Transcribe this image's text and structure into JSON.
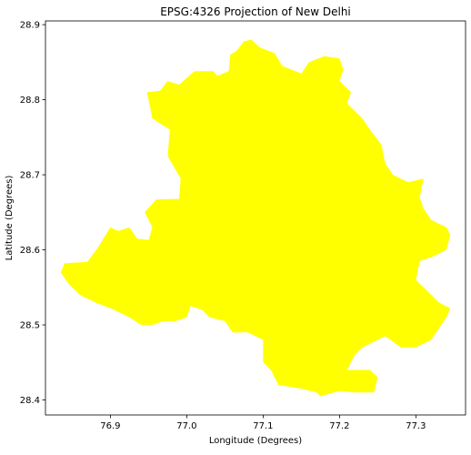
{
  "chart_data": {
    "type": "map",
    "title": "EPSG:4326 Projection of New Delhi",
    "xlabel": "Longitude (Degrees)",
    "ylabel": "Latitude (Degrees)",
    "xlim": [
      76.815,
      77.365
    ],
    "ylim": [
      28.38,
      28.905
    ],
    "x_ticks": [
      {
        "value": 76.9,
        "label": "76.9"
      },
      {
        "value": 77.0,
        "label": "77.0"
      },
      {
        "value": 77.1,
        "label": "77.1"
      },
      {
        "value": 77.2,
        "label": "77.2"
      },
      {
        "value": 77.3,
        "label": "77.3"
      }
    ],
    "y_ticks": [
      {
        "value": 28.4,
        "label": "28.4"
      },
      {
        "value": 28.5,
        "label": "28.5"
      },
      {
        "value": 28.6,
        "label": "28.6"
      },
      {
        "value": 28.7,
        "label": "28.7"
      },
      {
        "value": 28.8,
        "label": "28.8"
      },
      {
        "value": 28.9,
        "label": "28.9"
      }
    ],
    "grid": false,
    "fill_color": "#ffff00",
    "boundary": [
      [
        76.84,
        28.582
      ],
      [
        76.87,
        28.584
      ],
      [
        76.885,
        28.605
      ],
      [
        76.9,
        28.63
      ],
      [
        76.91,
        28.625
      ],
      [
        76.925,
        28.63
      ],
      [
        76.935,
        28.615
      ],
      [
        76.95,
        28.613
      ],
      [
        76.955,
        28.63
      ],
      [
        76.945,
        28.65
      ],
      [
        76.96,
        28.667
      ],
      [
        76.99,
        28.668
      ],
      [
        76.992,
        28.695
      ],
      [
        76.975,
        28.725
      ],
      [
        76.978,
        28.76
      ],
      [
        76.955,
        28.775
      ],
      [
        76.948,
        28.81
      ],
      [
        76.965,
        28.812
      ],
      [
        76.975,
        28.825
      ],
      [
        76.99,
        28.82
      ],
      [
        77.01,
        28.838
      ],
      [
        77.035,
        28.838
      ],
      [
        77.04,
        28.832
      ],
      [
        77.055,
        28.838
      ],
      [
        77.057,
        28.86
      ],
      [
        77.065,
        28.865
      ],
      [
        77.075,
        28.878
      ],
      [
        77.085,
        28.88
      ],
      [
        77.095,
        28.87
      ],
      [
        77.115,
        28.862
      ],
      [
        77.125,
        28.845
      ],
      [
        77.15,
        28.835
      ],
      [
        77.16,
        28.85
      ],
      [
        77.18,
        28.858
      ],
      [
        77.2,
        28.855
      ],
      [
        77.205,
        28.84
      ],
      [
        77.2,
        28.825
      ],
      [
        77.215,
        28.81
      ],
      [
        77.21,
        28.795
      ],
      [
        77.23,
        28.775
      ],
      [
        77.24,
        28.76
      ],
      [
        77.255,
        28.74
      ],
      [
        77.26,
        28.715
      ],
      [
        77.27,
        28.7
      ],
      [
        77.29,
        28.69
      ],
      [
        77.31,
        28.695
      ],
      [
        77.305,
        28.67
      ],
      [
        77.31,
        28.655
      ],
      [
        77.32,
        28.64
      ],
      [
        77.33,
        28.635
      ],
      [
        77.34,
        28.63
      ],
      [
        77.345,
        28.62
      ],
      [
        77.34,
        28.6
      ],
      [
        77.32,
        28.59
      ],
      [
        77.305,
        28.585
      ],
      [
        77.3,
        28.56
      ],
      [
        77.31,
        28.55
      ],
      [
        77.32,
        28.54
      ],
      [
        77.33,
        28.53
      ],
      [
        77.345,
        28.522
      ],
      [
        77.34,
        28.51
      ],
      [
        77.32,
        28.48
      ],
      [
        77.3,
        28.47
      ],
      [
        77.28,
        28.47
      ],
      [
        77.26,
        28.485
      ],
      [
        77.25,
        28.48
      ],
      [
        77.23,
        28.47
      ],
      [
        77.22,
        28.46
      ],
      [
        77.21,
        28.44
      ],
      [
        77.24,
        28.44
      ],
      [
        77.25,
        28.43
      ],
      [
        77.245,
        28.41
      ],
      [
        77.22,
        28.41
      ],
      [
        77.2,
        28.412
      ],
      [
        77.175,
        28.405
      ],
      [
        77.17,
        28.41
      ],
      [
        77.15,
        28.415
      ],
      [
        77.12,
        28.42
      ],
      [
        77.11,
        28.44
      ],
      [
        77.1,
        28.45
      ],
      [
        77.1,
        28.48
      ],
      [
        77.08,
        28.49
      ],
      [
        77.06,
        28.49
      ],
      [
        77.05,
        28.505
      ],
      [
        77.03,
        28.51
      ],
      [
        77.02,
        28.52
      ],
      [
        77.005,
        28.525
      ],
      [
        77.0,
        28.51
      ],
      [
        76.985,
        28.505
      ],
      [
        76.97,
        28.505
      ],
      [
        76.955,
        28.5
      ],
      [
        76.94,
        28.5
      ],
      [
        76.925,
        28.51
      ],
      [
        76.905,
        28.52
      ],
      [
        76.88,
        28.53
      ],
      [
        76.86,
        28.54
      ],
      [
        76.845,
        28.555
      ],
      [
        76.835,
        28.57
      ]
    ]
  }
}
